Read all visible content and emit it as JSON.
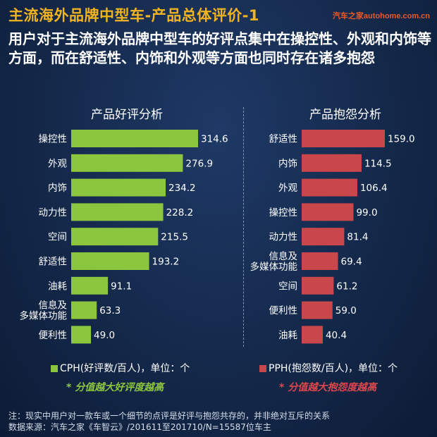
{
  "title": "主流海外品牌中型车-产品总体评价-1",
  "logo": "汽车之家autohome.com.cn",
  "headline": "用户对于主流海外品牌中型车的好评点集中在操控性、外观和内饰等方面，而在舒适性、内饰和外观等方面也同时存在诸多抱怨",
  "colors": {
    "good": "#8cc63f",
    "bad": "#c9464a",
    "title": "#f2b321"
  },
  "chart_data": [
    {
      "type": "bar",
      "orientation": "horizontal",
      "title": "产品好评分析",
      "categories": [
        "操控性",
        "外观",
        "内饰",
        "动力性",
        "空间",
        "舒适性",
        "油耗",
        "信息及\n多媒体功能",
        "便利性"
      ],
      "values": [
        314.6,
        276.9,
        234.2,
        228.2,
        215.5,
        193.2,
        91.1,
        63.3,
        49.0
      ],
      "value_labels": [
        "314.6",
        "276.9",
        "234.2",
        "228.2",
        "215.5",
        "193.2",
        "91.1",
        "63.3",
        "49.0"
      ],
      "legend": "CPH(好评数/百人)，单位：个",
      "hint": "* 分值越大好评度越高"
    },
    {
      "type": "bar",
      "orientation": "horizontal",
      "title": "产品抱怨分析",
      "categories": [
        "舒适性",
        "内饰",
        "外观",
        "操控性",
        "动力性",
        "信息及\n多媒体功能",
        "空间",
        "便利性",
        "油耗"
      ],
      "values": [
        159.0,
        114.5,
        106.4,
        99.0,
        81.4,
        69.4,
        61.2,
        59.0,
        40.4
      ],
      "value_labels": [
        "159.0",
        "114.5",
        "106.4",
        "99.0",
        "81.4",
        "69.4",
        "61.2",
        "59.0",
        "40.4"
      ],
      "legend": "PPH(抱怨数/百人)，单位：个",
      "hint": "* 分值越大抱怨度越高"
    }
  ],
  "note_lines": [
    "注：现实中用户对一款车或一个细节的点评是好评与抱怨共存的，并非绝对互斥的关系",
    "数据来源：汽车之家《车智云》/201611至201710/N=15587位车主"
  ]
}
